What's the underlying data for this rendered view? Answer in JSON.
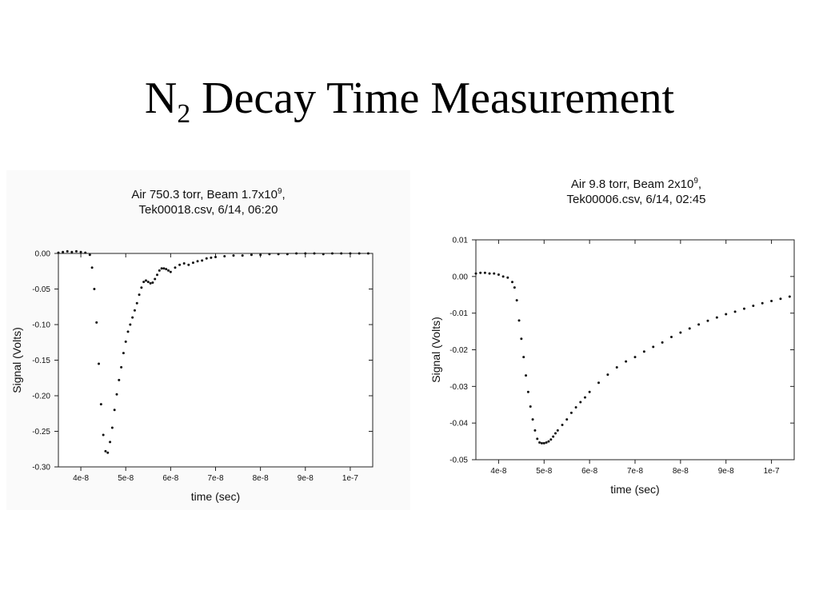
{
  "slide": {
    "title_main": "N",
    "title_sub": "2",
    "title_rest": " Decay Time Measurement"
  },
  "chart_data": [
    {
      "type": "scatter",
      "title_line1_a": "Air 750.3 torr, Beam 1.7x10",
      "title_line1_sup": "9",
      "title_line1_b": ",",
      "title_line2": "Tek00018.csv, 6/14, 06:20",
      "xlabel": "time (sec)",
      "ylabel": "Signal (Volts)",
      "xlim": [
        3.5e-08,
        1.05e-07
      ],
      "ylim": [
        -0.3,
        0.0
      ],
      "xticks": [
        4e-08,
        5e-08,
        6e-08,
        7e-08,
        8e-08,
        9e-08,
        1e-07
      ],
      "xtick_labels": [
        "4e-8",
        "5e-8",
        "6e-8",
        "7e-8",
        "8e-8",
        "9e-8",
        "1e-7"
      ],
      "yticks": [
        0.0,
        -0.05,
        -0.1,
        -0.15,
        -0.2,
        -0.25,
        -0.3
      ],
      "ytick_labels": [
        "0.00",
        "-0.05",
        "-0.10",
        "-0.15",
        "-0.20",
        "-0.25",
        "-0.30"
      ],
      "grid": false,
      "series": [
        {
          "x": [
            3.5e-08,
            3.6e-08,
            3.7e-08,
            3.8e-08,
            3.9e-08,
            4e-08,
            4.1e-08,
            4.2e-08,
            4.25e-08,
            4.3e-08,
            4.35e-08,
            4.4e-08,
            4.45e-08,
            4.5e-08,
            4.55e-08,
            4.6e-08,
            4.65e-08,
            4.7e-08,
            4.75e-08,
            4.8e-08,
            4.85e-08,
            4.9e-08,
            4.95e-08,
            5e-08,
            5.05e-08,
            5.1e-08,
            5.15e-08,
            5.2e-08,
            5.25e-08,
            5.3e-08,
            5.35e-08,
            5.4e-08,
            5.45e-08,
            5.5e-08,
            5.55e-08,
            5.6e-08,
            5.65e-08,
            5.7e-08,
            5.75e-08,
            5.8e-08,
            5.85e-08,
            5.9e-08,
            5.95e-08,
            6e-08,
            6.1e-08,
            6.2e-08,
            6.3e-08,
            6.4e-08,
            6.5e-08,
            6.6e-08,
            6.7e-08,
            6.8e-08,
            6.9e-08,
            7e-08,
            7.2e-08,
            7.4e-08,
            7.6e-08,
            7.8e-08,
            8e-08,
            8.2e-08,
            8.4e-08,
            8.6e-08,
            8.8e-08,
            9e-08,
            9.2e-08,
            9.4e-08,
            9.6e-08,
            9.8e-08,
            1e-07,
            1.02e-07,
            1.04e-07
          ],
          "y": [
            0.001,
            0.002,
            0.003,
            0.002,
            0.003,
            0.002,
            0.001,
            -0.002,
            -0.02,
            -0.05,
            -0.097,
            -0.155,
            -0.212,
            -0.255,
            -0.278,
            -0.28,
            -0.265,
            -0.245,
            -0.22,
            -0.198,
            -0.178,
            -0.16,
            -0.14,
            -0.124,
            -0.11,
            -0.1,
            -0.09,
            -0.08,
            -0.07,
            -0.058,
            -0.048,
            -0.04,
            -0.038,
            -0.04,
            -0.042,
            -0.041,
            -0.036,
            -0.03,
            -0.024,
            -0.021,
            -0.021,
            -0.022,
            -0.024,
            -0.026,
            -0.02,
            -0.016,
            -0.014,
            -0.016,
            -0.013,
            -0.011,
            -0.01,
            -0.007,
            -0.006,
            -0.005,
            -0.004,
            -0.003,
            -0.003,
            -0.002,
            -0.002,
            -0.001,
            -0.001,
            -0.001,
            0.0,
            0.0,
            0.0,
            -0.001,
            0.0,
            0.0,
            0.0,
            0.0,
            0.0
          ]
        }
      ]
    },
    {
      "type": "scatter",
      "title_line1_a": "Air 9.8 torr, Beam 2x10",
      "title_line1_sup": "9",
      "title_line1_b": ",",
      "title_line2": "Tek00006.csv, 6/14, 02:45",
      "xlabel": "time (sec)",
      "ylabel": "Signal (Volts)",
      "xlim": [
        3.5e-08,
        1.05e-07
      ],
      "ylim": [
        -0.05,
        0.01
      ],
      "xticks": [
        4e-08,
        5e-08,
        6e-08,
        7e-08,
        8e-08,
        9e-08,
        1e-07
      ],
      "xtick_labels": [
        "4e-8",
        "5e-8",
        "6e-8",
        "7e-8",
        "8e-8",
        "9e-8",
        "1e-7"
      ],
      "yticks": [
        0.01,
        0.0,
        -0.01,
        -0.02,
        -0.03,
        -0.04,
        -0.05
      ],
      "ytick_labels": [
        "0.01",
        "0.00",
        "-0.01",
        "-0.02",
        "-0.03",
        "-0.04",
        "-0.05"
      ],
      "grid": false,
      "series": [
        {
          "x": [
            3.5e-08,
            3.6e-08,
            3.7e-08,
            3.8e-08,
            3.9e-08,
            4e-08,
            4.1e-08,
            4.2e-08,
            4.3e-08,
            4.35e-08,
            4.4e-08,
            4.45e-08,
            4.5e-08,
            4.55e-08,
            4.6e-08,
            4.65e-08,
            4.7e-08,
            4.75e-08,
            4.8e-08,
            4.85e-08,
            4.9e-08,
            4.95e-08,
            5e-08,
            5.05e-08,
            5.1e-08,
            5.15e-08,
            5.2e-08,
            5.25e-08,
            5.3e-08,
            5.4e-08,
            5.5e-08,
            5.6e-08,
            5.7e-08,
            5.8e-08,
            5.9e-08,
            6e-08,
            6.2e-08,
            6.4e-08,
            6.6e-08,
            6.8e-08,
            7e-08,
            7.2e-08,
            7.4e-08,
            7.6e-08,
            7.8e-08,
            8e-08,
            8.2e-08,
            8.4e-08,
            8.6e-08,
            8.8e-08,
            9e-08,
            9.2e-08,
            9.4e-08,
            9.6e-08,
            9.8e-08,
            1e-07,
            1.02e-07,
            1.04e-07
          ],
          "y": [
            0.0008,
            0.001,
            0.001,
            0.0008,
            0.0008,
            0.0005,
            0.0,
            -0.0003,
            -0.0015,
            -0.003,
            -0.0065,
            -0.012,
            -0.017,
            -0.022,
            -0.027,
            -0.0315,
            -0.0355,
            -0.039,
            -0.042,
            -0.0443,
            -0.0453,
            -0.0455,
            -0.0455,
            -0.0453,
            -0.045,
            -0.0445,
            -0.0437,
            -0.0428,
            -0.042,
            -0.0405,
            -0.039,
            -0.0372,
            -0.0357,
            -0.0343,
            -0.033,
            -0.0315,
            -0.029,
            -0.0268,
            -0.0248,
            -0.0232,
            -0.022,
            -0.0205,
            -0.0192,
            -0.018,
            -0.0165,
            -0.0153,
            -0.0142,
            -0.0131,
            -0.0121,
            -0.0112,
            -0.0103,
            -0.0096,
            -0.0088,
            -0.008,
            -0.0073,
            -0.0067,
            -0.0061,
            -0.0055
          ]
        }
      ]
    }
  ]
}
